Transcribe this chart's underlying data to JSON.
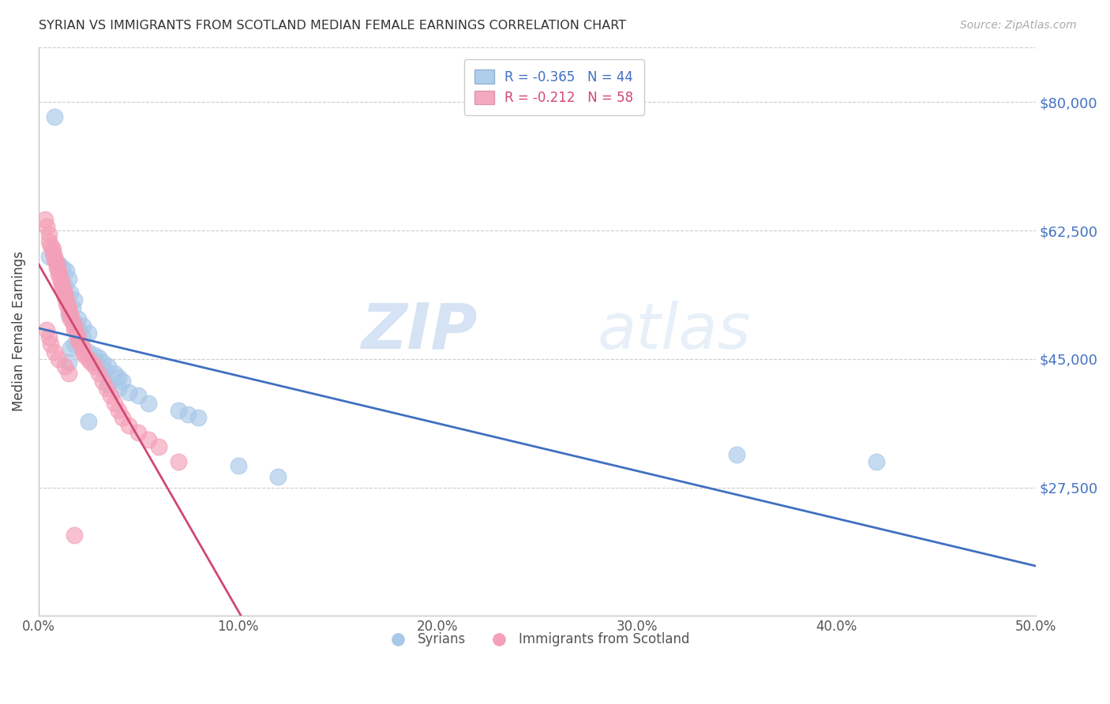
{
  "title": "SYRIAN VS IMMIGRANTS FROM SCOTLAND MEDIAN FEMALE EARNINGS CORRELATION CHART",
  "source": "Source: ZipAtlas.com",
  "xlabel": "",
  "ylabel": "Median Female Earnings",
  "xlim": [
    0.0,
    0.5
  ],
  "ylim": [
    10000,
    87500
  ],
  "yticks": [
    27500,
    45000,
    62500,
    80000
  ],
  "ytick_labels": [
    "$27,500",
    "$45,000",
    "$62,500",
    "$80,000"
  ],
  "xtick_labels": [
    "0.0%",
    "10.0%",
    "20.0%",
    "30.0%",
    "40.0%",
    "50.0%"
  ],
  "xticks": [
    0.0,
    0.1,
    0.2,
    0.3,
    0.4,
    0.5
  ],
  "blue_color": "#a8c8e8",
  "pink_color": "#f4a0b8",
  "trend_blue": "#4070c0",
  "trend_pink": "#d04870",
  "trend_gray": "#c0c0d0",
  "legend_R_blue": "-0.365",
  "legend_N_blue": "44",
  "legend_R_pink": "-0.212",
  "legend_N_pink": "58",
  "watermark_zip": "ZIP",
  "watermark_atlas": "atlas",
  "syrians_x": [
    0.008,
    0.005,
    0.01,
    0.012,
    0.014,
    0.015,
    0.013,
    0.016,
    0.018,
    0.017,
    0.015,
    0.02,
    0.018,
    0.022,
    0.02,
    0.025,
    0.022,
    0.02,
    0.018,
    0.016,
    0.025,
    0.028,
    0.03,
    0.028,
    0.032,
    0.035,
    0.033,
    0.038,
    0.04,
    0.042,
    0.035,
    0.04,
    0.045,
    0.05,
    0.055,
    0.07,
    0.075,
    0.08,
    0.1,
    0.12,
    0.35,
    0.42,
    0.015,
    0.025
  ],
  "syrians_y": [
    78000,
    59000,
    58000,
    57500,
    57000,
    56000,
    55000,
    54000,
    53000,
    52000,
    51000,
    50500,
    50000,
    49500,
    49000,
    48500,
    48000,
    47500,
    47000,
    46500,
    46000,
    45500,
    45200,
    44800,
    44500,
    44000,
    43500,
    43000,
    42500,
    42000,
    41500,
    41000,
    40500,
    40000,
    39000,
    38000,
    37500,
    37000,
    30500,
    29000,
    32000,
    31000,
    44500,
    36500
  ],
  "scotland_x": [
    0.003,
    0.004,
    0.005,
    0.005,
    0.006,
    0.007,
    0.007,
    0.008,
    0.008,
    0.009,
    0.009,
    0.01,
    0.01,
    0.011,
    0.011,
    0.012,
    0.012,
    0.013,
    0.013,
    0.014,
    0.014,
    0.015,
    0.015,
    0.016,
    0.016,
    0.017,
    0.018,
    0.018,
    0.019,
    0.02,
    0.02,
    0.021,
    0.022,
    0.022,
    0.023,
    0.025,
    0.026,
    0.028,
    0.03,
    0.032,
    0.034,
    0.036,
    0.038,
    0.04,
    0.042,
    0.045,
    0.05,
    0.055,
    0.06,
    0.07,
    0.004,
    0.005,
    0.006,
    0.008,
    0.01,
    0.013,
    0.015,
    0.018
  ],
  "scotland_y": [
    64000,
    63000,
    62000,
    61000,
    60500,
    60000,
    59500,
    59000,
    58500,
    58000,
    57500,
    57000,
    56500,
    56000,
    55500,
    55000,
    54500,
    54000,
    53500,
    53000,
    52500,
    52000,
    51500,
    51000,
    50500,
    50000,
    49500,
    49000,
    48500,
    48000,
    47500,
    47000,
    46500,
    46000,
    45500,
    45000,
    44500,
    44000,
    43000,
    42000,
    41000,
    40000,
    39000,
    38000,
    37000,
    36000,
    35000,
    34000,
    33000,
    31000,
    49000,
    48000,
    47000,
    46000,
    45000,
    44000,
    43000,
    21000
  ]
}
